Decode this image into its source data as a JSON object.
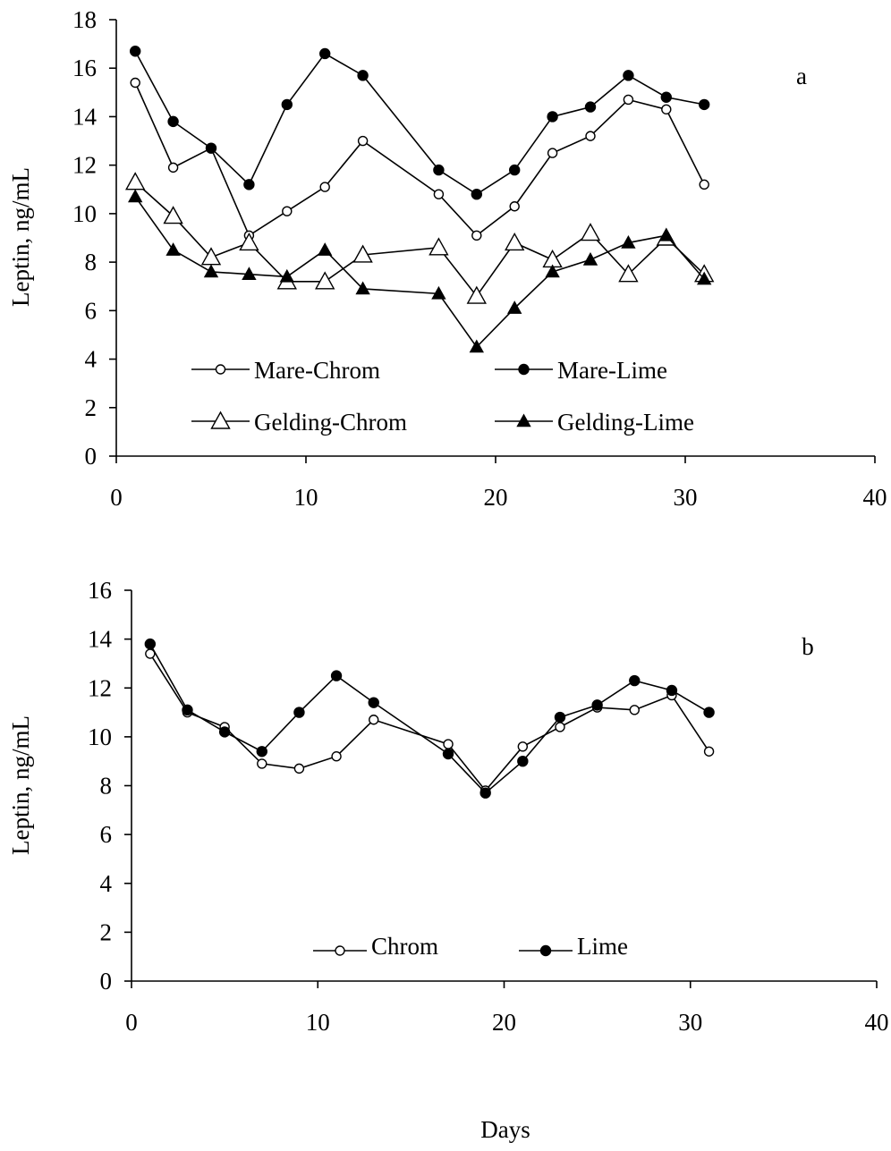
{
  "chart_data": [
    {
      "type": "line",
      "panel_label": "a",
      "ylabel": "Leptin, ng/mL",
      "xlabel": "",
      "xlim": [
        0,
        40
      ],
      "ylim": [
        0,
        18
      ],
      "xticks": [
        "0",
        "10",
        "20",
        "30",
        "40"
      ],
      "yticks": [
        "0",
        "2",
        "4",
        "6",
        "8",
        "10",
        "12",
        "14",
        "16",
        "18"
      ],
      "grid": false,
      "legend_placement": "bottom",
      "x": [
        1,
        3,
        5,
        7,
        9,
        11,
        13,
        17,
        19,
        21,
        23,
        25,
        27,
        29,
        31
      ],
      "series": [
        {
          "name": "Mare-Chrom",
          "marker": "open-circle",
          "values": [
            15.4,
            11.9,
            12.7,
            9.1,
            10.1,
            11.1,
            13.0,
            10.8,
            9.1,
            10.3,
            12.5,
            13.2,
            14.7,
            14.3,
            11.2
          ]
        },
        {
          "name": "Mare-Lime",
          "marker": "filled-circle",
          "values": [
            16.7,
            13.8,
            12.7,
            11.2,
            14.5,
            16.6,
            15.7,
            11.8,
            10.8,
            11.8,
            14.0,
            14.4,
            15.7,
            14.8,
            14.5
          ]
        },
        {
          "name": "Gelding-Chrom",
          "marker": "open-triangle",
          "values": [
            11.3,
            9.9,
            8.2,
            8.8,
            7.2,
            7.2,
            8.3,
            8.6,
            6.6,
            8.8,
            8.1,
            9.2,
            7.5,
            9.0,
            7.5
          ]
        },
        {
          "name": "Gelding-Lime",
          "marker": "filled-triangle",
          "values": [
            10.7,
            8.5,
            7.6,
            7.5,
            7.4,
            8.5,
            6.9,
            6.7,
            4.5,
            6.1,
            7.6,
            8.1,
            8.8,
            9.1,
            7.3
          ]
        }
      ]
    },
    {
      "type": "line",
      "panel_label": "b",
      "ylabel": "Leptin, ng/mL",
      "xlabel": "Days",
      "xlim": [
        0,
        40
      ],
      "ylim": [
        0,
        16
      ],
      "xticks": [
        "0",
        "10",
        "20",
        "30",
        "40"
      ],
      "yticks": [
        "0",
        "2",
        "4",
        "6",
        "8",
        "10",
        "12",
        "14",
        "16"
      ],
      "grid": false,
      "legend_placement": "bottom",
      "x": [
        1,
        3,
        5,
        7,
        9,
        11,
        13,
        17,
        19,
        21,
        23,
        25,
        27,
        29,
        31
      ],
      "series": [
        {
          "name": "Chrom",
          "marker": "open-circle",
          "values": [
            13.4,
            11.0,
            10.4,
            8.9,
            8.7,
            9.2,
            10.7,
            9.7,
            7.8,
            9.6,
            10.4,
            11.2,
            11.1,
            11.7,
            9.4
          ]
        },
        {
          "name": "Lime",
          "marker": "filled-circle",
          "values": [
            13.8,
            11.1,
            10.2,
            9.4,
            11.0,
            12.5,
            11.4,
            9.3,
            7.7,
            9.0,
            10.8,
            11.3,
            12.3,
            11.9,
            11.0
          ]
        }
      ]
    }
  ]
}
